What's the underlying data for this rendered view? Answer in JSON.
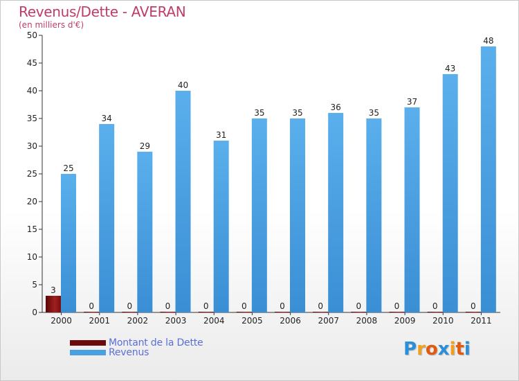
{
  "chart_data": {
    "type": "bar",
    "title": "Revenus/Dette - AVERAN",
    "subtitle": "(en milliers d'€)",
    "categories": [
      "2000",
      "2001",
      "2002",
      "2003",
      "2004",
      "2005",
      "2006",
      "2007",
      "2008",
      "2009",
      "2010",
      "2011"
    ],
    "series": [
      {
        "name": "Montant de la Dette",
        "values": [
          3,
          0,
          0,
          0,
          0,
          0,
          0,
          0,
          0,
          0,
          0,
          0
        ],
        "color": "#7a0d0d"
      },
      {
        "name": "Revenus",
        "values": [
          25,
          34,
          29,
          40,
          31,
          35,
          35,
          36,
          35,
          37,
          43,
          48
        ],
        "color": "#4a9fe0"
      }
    ],
    "ylim": [
      0,
      50
    ],
    "yticks": [
      0,
      5,
      10,
      15,
      20,
      25,
      30,
      35,
      40,
      45,
      50
    ],
    "grid": false,
    "legend_position": "bottom-left"
  },
  "logo": {
    "letters": [
      "P",
      "r",
      "o",
      "x",
      "i",
      "t",
      "i"
    ],
    "colors": [
      "#2a8fd8",
      "#f0a020",
      "#e05a10",
      "#2a8fd8",
      "#f0a020",
      "#e05a10",
      "#2a8fd8"
    ]
  }
}
